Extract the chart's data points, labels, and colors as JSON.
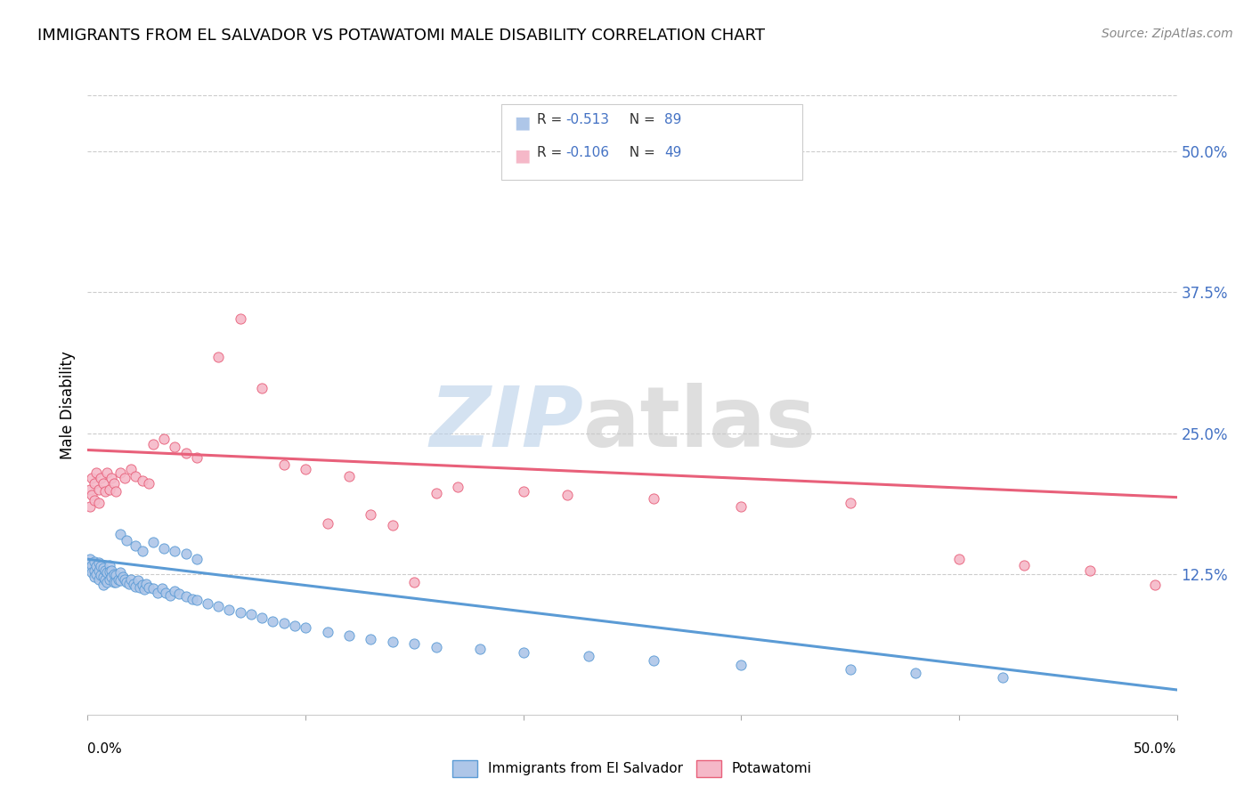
{
  "title": "IMMIGRANTS FROM EL SALVADOR VS POTAWATOMI MALE DISABILITY CORRELATION CHART",
  "source": "Source: ZipAtlas.com",
  "ylabel": "Male Disability",
  "ytick_labels": [
    "12.5%",
    "25.0%",
    "37.5%",
    "50.0%"
  ],
  "ytick_values": [
    0.125,
    0.25,
    0.375,
    0.5
  ],
  "xlim": [
    0.0,
    0.5
  ],
  "ylim": [
    0.0,
    0.55
  ],
  "legend_blue_r": "-0.513",
  "legend_blue_n": "89",
  "legend_pink_r": "-0.106",
  "legend_pink_n": "49",
  "legend_label_blue": "Immigrants from El Salvador",
  "legend_label_pink": "Potawatomi",
  "blue_fill_color": "#aec6e8",
  "pink_fill_color": "#f5b8c8",
  "blue_edge_color": "#5b9bd5",
  "pink_edge_color": "#e8607a",
  "blue_line_color": "#5b9bd5",
  "pink_line_color": "#e8607a",
  "grid_color": "#cccccc",
  "blue_scatter_x": [
    0.001,
    0.001,
    0.002,
    0.002,
    0.003,
    0.003,
    0.003,
    0.004,
    0.004,
    0.005,
    0.005,
    0.005,
    0.006,
    0.006,
    0.007,
    0.007,
    0.007,
    0.008,
    0.008,
    0.009,
    0.009,
    0.01,
    0.01,
    0.01,
    0.011,
    0.011,
    0.012,
    0.012,
    0.013,
    0.013,
    0.014,
    0.015,
    0.015,
    0.016,
    0.017,
    0.018,
    0.019,
    0.02,
    0.021,
    0.022,
    0.023,
    0.024,
    0.025,
    0.026,
    0.027,
    0.028,
    0.03,
    0.032,
    0.034,
    0.036,
    0.038,
    0.04,
    0.042,
    0.045,
    0.048,
    0.05,
    0.055,
    0.06,
    0.065,
    0.07,
    0.075,
    0.08,
    0.085,
    0.09,
    0.095,
    0.1,
    0.11,
    0.12,
    0.13,
    0.14,
    0.15,
    0.16,
    0.18,
    0.2,
    0.23,
    0.26,
    0.3,
    0.35,
    0.38,
    0.42,
    0.015,
    0.018,
    0.022,
    0.025,
    0.03,
    0.035,
    0.04,
    0.045,
    0.05
  ],
  "blue_scatter_y": [
    0.138,
    0.13,
    0.133,
    0.126,
    0.136,
    0.128,
    0.122,
    0.132,
    0.125,
    0.135,
    0.128,
    0.12,
    0.132,
    0.124,
    0.13,
    0.122,
    0.115,
    0.128,
    0.12,
    0.126,
    0.118,
    0.133,
    0.127,
    0.12,
    0.128,
    0.122,
    0.125,
    0.118,
    0.124,
    0.118,
    0.12,
    0.126,
    0.119,
    0.122,
    0.12,
    0.118,
    0.116,
    0.12,
    0.116,
    0.114,
    0.119,
    0.113,
    0.115,
    0.111,
    0.116,
    0.113,
    0.112,
    0.108,
    0.112,
    0.108,
    0.106,
    0.11,
    0.107,
    0.105,
    0.103,
    0.102,
    0.099,
    0.096,
    0.093,
    0.091,
    0.089,
    0.086,
    0.083,
    0.081,
    0.079,
    0.077,
    0.073,
    0.07,
    0.067,
    0.065,
    0.063,
    0.06,
    0.058,
    0.055,
    0.052,
    0.048,
    0.044,
    0.04,
    0.037,
    0.033,
    0.16,
    0.155,
    0.15,
    0.145,
    0.153,
    0.148,
    0.145,
    0.143,
    0.138
  ],
  "pink_scatter_x": [
    0.001,
    0.001,
    0.002,
    0.002,
    0.003,
    0.003,
    0.004,
    0.005,
    0.005,
    0.006,
    0.007,
    0.008,
    0.009,
    0.01,
    0.011,
    0.012,
    0.013,
    0.015,
    0.017,
    0.02,
    0.022,
    0.025,
    0.028,
    0.03,
    0.035,
    0.04,
    0.045,
    0.05,
    0.06,
    0.07,
    0.08,
    0.09,
    0.1,
    0.11,
    0.12,
    0.13,
    0.14,
    0.15,
    0.16,
    0.17,
    0.2,
    0.22,
    0.26,
    0.3,
    0.35,
    0.4,
    0.43,
    0.46,
    0.49
  ],
  "pink_scatter_y": [
    0.2,
    0.185,
    0.21,
    0.195,
    0.205,
    0.19,
    0.215,
    0.2,
    0.188,
    0.21,
    0.205,
    0.198,
    0.215,
    0.2,
    0.21,
    0.205,
    0.198,
    0.215,
    0.21,
    0.218,
    0.212,
    0.208,
    0.205,
    0.24,
    0.245,
    0.238,
    0.232,
    0.228,
    0.318,
    0.352,
    0.29,
    0.222,
    0.218,
    0.17,
    0.212,
    0.178,
    0.168,
    0.118,
    0.197,
    0.202,
    0.198,
    0.195,
    0.192,
    0.185,
    0.188,
    0.138,
    0.133,
    0.128,
    0.115
  ],
  "blue_trend_x": [
    0.0,
    0.5
  ],
  "blue_trend_y": [
    0.138,
    0.022
  ],
  "pink_trend_x": [
    0.0,
    0.5
  ],
  "pink_trend_y": [
    0.235,
    0.193
  ],
  "watermark_zip_color": "#b8cfe8",
  "watermark_atlas_color": "#c8c8c8",
  "accent_color": "#4472c4"
}
